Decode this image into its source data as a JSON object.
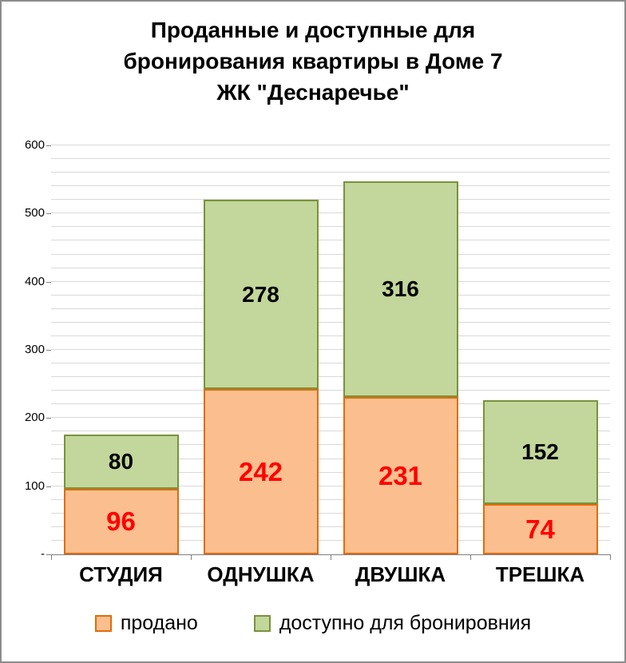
{
  "title": {
    "lines": [
      "Проданные и доступные для",
      "бронирования  квартиры в Доме 7",
      "ЖК \"Деснаречье\""
    ]
  },
  "chart_data": {
    "type": "bar",
    "stacked": true,
    "title": "Проданные и доступные для бронирования  квартиры в Доме 7 ЖК \"Деснаречье\"",
    "categories": [
      "СТУДИЯ",
      "ОДНУШКА",
      "ДВУШКА",
      "ТРЕШКА"
    ],
    "series": [
      {
        "key": "sold",
        "name": "продано",
        "values": [
          96,
          242,
          231,
          74
        ],
        "fill": "#FBBF8F",
        "border": "#E26B0A",
        "label_color": "#FF0000"
      },
      {
        "key": "available",
        "name": "доступно для бронировния",
        "values": [
          80,
          278,
          316,
          152
        ],
        "fill": "#C3D69B",
        "border": "#77933C",
        "label_color": "#000000"
      }
    ],
    "totals": [
      176,
      520,
      547,
      226
    ],
    "ylim": [
      0,
      600
    ],
    "ytick_step": 100,
    "ytick_labels": [
      "-",
      "100",
      "200",
      "300",
      "400",
      "500",
      "600"
    ],
    "grid": true,
    "grid_minor_step": 20,
    "legend_position": "bottom",
    "xlabel": "",
    "ylabel": ""
  }
}
